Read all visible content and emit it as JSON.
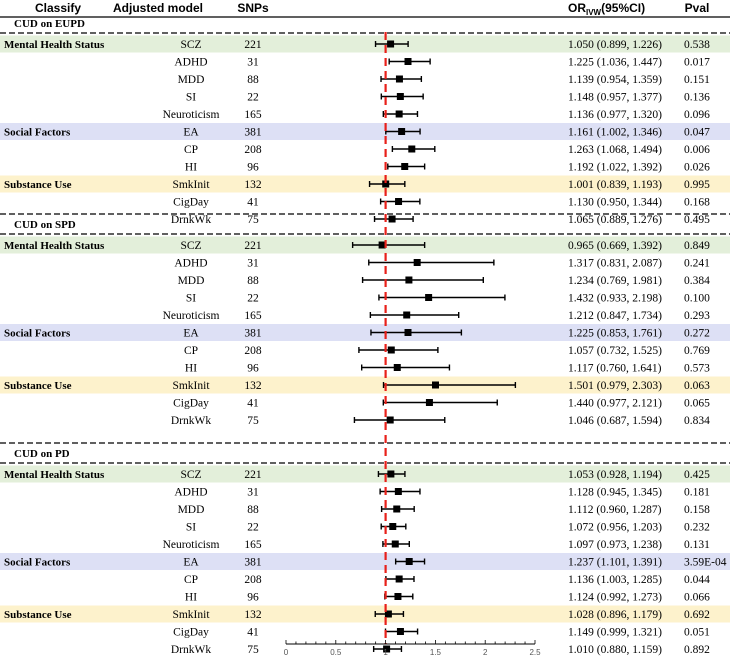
{
  "header": {
    "classify": "Classify",
    "model": "Adjusted model",
    "snps": "SNPs",
    "or_main": "OR",
    "or_sub": "IVW",
    "or_tail": "(95%CI)",
    "pval": "Pval"
  },
  "colors": {
    "mental": "#e3efda",
    "social": "#dde0f5",
    "substance": "#fdf2cc",
    "significant": "#e8201a",
    "null_line": "#e8201a"
  },
  "chart_data": {
    "type": "forest",
    "x_axis": {
      "range": [
        0,
        2.5
      ],
      "ticks": [
        0,
        0.5,
        1,
        1.5,
        2,
        2.5
      ],
      "tick_labels": [
        "0",
        "0.5",
        "1",
        "1.5",
        "2",
        "2.5"
      ],
      "null_value": 1
    },
    "sections": [
      {
        "title": "CUD on EUPD",
        "rows": [
          {
            "group": "Mental Health Status",
            "model": "SCZ",
            "snps": "221",
            "or": 1.05,
            "lo": 0.899,
            "hi": 1.226,
            "ci_text": "1.050 (0.899, 1.226)",
            "pval": "0.538",
            "sig": false
          },
          {
            "group": "",
            "model": "ADHD",
            "snps": "31",
            "or": 1.225,
            "lo": 1.036,
            "hi": 1.447,
            "ci_text": "1.225 (1.036, 1.447)",
            "pval": "0.017",
            "sig": true
          },
          {
            "group": "",
            "model": "MDD",
            "snps": "88",
            "or": 1.139,
            "lo": 0.954,
            "hi": 1.359,
            "ci_text": "1.139 (0.954, 1.359)",
            "pval": "0.151",
            "sig": false
          },
          {
            "group": "",
            "model": "SI",
            "snps": "22",
            "or": 1.148,
            "lo": 0.957,
            "hi": 1.377,
            "ci_text": "1.148 (0.957, 1.377)",
            "pval": "0.136",
            "sig": false
          },
          {
            "group": "",
            "model": "Neuroticism",
            "snps": "165",
            "or": 1.136,
            "lo": 0.977,
            "hi": 1.32,
            "ci_text": "1.136 (0.977, 1.320)",
            "pval": "0.096",
            "sig": false
          },
          {
            "group": "Social Factors",
            "model": "EA",
            "snps": "381",
            "or": 1.161,
            "lo": 1.002,
            "hi": 1.346,
            "ci_text": "1.161 (1.002, 1.346)",
            "pval": "0.047",
            "sig": true
          },
          {
            "group": "",
            "model": "CP",
            "snps": "208",
            "or": 1.263,
            "lo": 1.068,
            "hi": 1.494,
            "ci_text": "1.263 (1.068, 1.494)",
            "pval": "0.006",
            "sig": true
          },
          {
            "group": "",
            "model": "HI",
            "snps": "96",
            "or": 1.192,
            "lo": 1.022,
            "hi": 1.392,
            "ci_text": "1.192 (1.022, 1.392)",
            "pval": "0.026",
            "sig": true
          },
          {
            "group": "Substance Use",
            "model": "SmkInit",
            "snps": "132",
            "or": 1.001,
            "lo": 0.839,
            "hi": 1.193,
            "ci_text": "1.001 (0.839, 1.193)",
            "pval": "0.995",
            "sig": false
          },
          {
            "group": "",
            "model": "CigDay",
            "snps": "41",
            "or": 1.13,
            "lo": 0.95,
            "hi": 1.344,
            "ci_text": "1.130 (0.950, 1.344)",
            "pval": "0.168",
            "sig": false
          },
          {
            "group": "",
            "model": "DrnkWk",
            "snps": "75",
            "or": 1.065,
            "lo": 0.889,
            "hi": 1.276,
            "ci_text": "1.065 (0.889, 1.276)",
            "pval": "0.495",
            "sig": false
          }
        ]
      },
      {
        "title": "CUD on SPD",
        "rows": [
          {
            "group": "Mental Health Status",
            "model": "SCZ",
            "snps": "221",
            "or": 0.965,
            "lo": 0.669,
            "hi": 1.392,
            "ci_text": "0.965 (0.669, 1.392)",
            "pval": "0.849",
            "sig": false
          },
          {
            "group": "",
            "model": "ADHD",
            "snps": "31",
            "or": 1.317,
            "lo": 0.831,
            "hi": 2.087,
            "ci_text": "1.317 (0.831, 2.087)",
            "pval": "0.241",
            "sig": false
          },
          {
            "group": "",
            "model": "MDD",
            "snps": "88",
            "or": 1.234,
            "lo": 0.769,
            "hi": 1.981,
            "ci_text": "1.234 (0.769, 1.981)",
            "pval": "0.384",
            "sig": false
          },
          {
            "group": "",
            "model": "SI",
            "snps": "22",
            "or": 1.432,
            "lo": 0.933,
            "hi": 2.198,
            "ci_text": "1.432 (0.933, 2.198)",
            "pval": "0.100",
            "sig": false
          },
          {
            "group": "",
            "model": "Neuroticism",
            "snps": "165",
            "or": 1.212,
            "lo": 0.847,
            "hi": 1.734,
            "ci_text": "1.212 (0.847, 1.734)",
            "pval": "0.293",
            "sig": false
          },
          {
            "group": "Social Factors",
            "model": "EA",
            "snps": "381",
            "or": 1.225,
            "lo": 0.853,
            "hi": 1.761,
            "ci_text": "1.225 (0.853, 1.761)",
            "pval": "0.272",
            "sig": false
          },
          {
            "group": "",
            "model": "CP",
            "snps": "208",
            "or": 1.057,
            "lo": 0.732,
            "hi": 1.525,
            "ci_text": "1.057 (0.732, 1.525)",
            "pval": "0.769",
            "sig": false
          },
          {
            "group": "",
            "model": "HI",
            "snps": "96",
            "or": 1.117,
            "lo": 0.76,
            "hi": 1.641,
            "ci_text": "1.117 (0.760, 1.641)",
            "pval": "0.573",
            "sig": false
          },
          {
            "group": "Substance Use",
            "model": "SmkInit",
            "snps": "132",
            "or": 1.501,
            "lo": 0.979,
            "hi": 2.303,
            "ci_text": "1.501 (0.979, 2.303)",
            "pval": "0.063",
            "sig": false
          },
          {
            "group": "",
            "model": "CigDay",
            "snps": "41",
            "or": 1.44,
            "lo": 0.977,
            "hi": 2.121,
            "ci_text": "1.440 (0.977, 2.121)",
            "pval": "0.065",
            "sig": false
          },
          {
            "group": "",
            "model": "DrnkWk",
            "snps": "75",
            "or": 1.046,
            "lo": 0.687,
            "hi": 1.594,
            "ci_text": "1.046 (0.687, 1.594)",
            "pval": "0.834",
            "sig": false
          }
        ]
      },
      {
        "title": "CUD on PD",
        "rows": [
          {
            "group": "Mental Health Status",
            "model": "SCZ",
            "snps": "221",
            "or": 1.053,
            "lo": 0.928,
            "hi": 1.194,
            "ci_text": "1.053 (0.928, 1.194)",
            "pval": "0.425",
            "sig": false
          },
          {
            "group": "",
            "model": "ADHD",
            "snps": "31",
            "or": 1.128,
            "lo": 0.945,
            "hi": 1.345,
            "ci_text": "1.128 (0.945, 1.345)",
            "pval": "0.181",
            "sig": false
          },
          {
            "group": "",
            "model": "MDD",
            "snps": "88",
            "or": 1.112,
            "lo": 0.96,
            "hi": 1.287,
            "ci_text": "1.112 (0.960, 1.287)",
            "pval": "0.158",
            "sig": false
          },
          {
            "group": "",
            "model": "SI",
            "snps": "22",
            "or": 1.072,
            "lo": 0.956,
            "hi": 1.203,
            "ci_text": "1.072 (0.956, 1.203)",
            "pval": "0.232",
            "sig": false
          },
          {
            "group": "",
            "model": "Neuroticism",
            "snps": "165",
            "or": 1.097,
            "lo": 0.973,
            "hi": 1.238,
            "ci_text": "1.097 (0.973, 1.238)",
            "pval": "0.131",
            "sig": false
          },
          {
            "group": "Social Factors",
            "model": "EA",
            "snps": "381",
            "or": 1.237,
            "lo": 1.101,
            "hi": 1.391,
            "ci_text": "1.237 (1.101, 1.391)",
            "pval": "3.59E-04",
            "sig": true
          },
          {
            "group": "",
            "model": "CP",
            "snps": "208",
            "or": 1.136,
            "lo": 1.003,
            "hi": 1.285,
            "ci_text": "1.136 (1.003, 1.285)",
            "pval": "0.044",
            "sig": true
          },
          {
            "group": "",
            "model": "HI",
            "snps": "96",
            "or": 1.124,
            "lo": 0.992,
            "hi": 1.273,
            "ci_text": "1.124 (0.992, 1.273)",
            "pval": "0.066",
            "sig": false
          },
          {
            "group": "Substance Use",
            "model": "SmkInit",
            "snps": "132",
            "or": 1.028,
            "lo": 0.896,
            "hi": 1.179,
            "ci_text": "1.028 (0.896, 1.179)",
            "pval": "0.692",
            "sig": false
          },
          {
            "group": "",
            "model": "CigDay",
            "snps": "41",
            "or": 1.149,
            "lo": 0.999,
            "hi": 1.321,
            "ci_text": "1.149 (0.999, 1.321)",
            "pval": "0.051",
            "sig": false
          },
          {
            "group": "",
            "model": "DrnkWk",
            "snps": "75",
            "or": 1.01,
            "lo": 0.88,
            "hi": 1.159,
            "ci_text": "1.010 (0.880, 1.159)",
            "pval": "0.892",
            "sig": false
          }
        ]
      }
    ]
  }
}
